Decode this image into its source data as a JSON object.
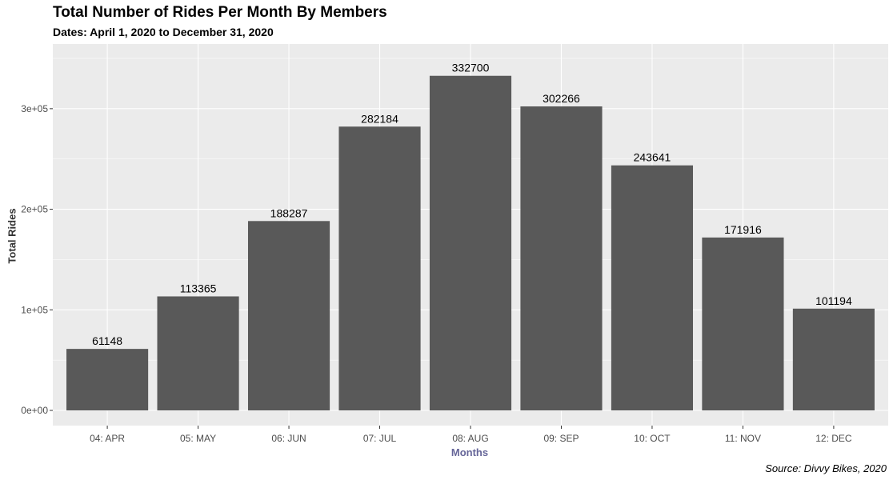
{
  "chart_data": {
    "type": "bar",
    "title": "Total Number of Rides Per Month By Members",
    "subtitle": "Dates: April 1, 2020 to December 31, 2020",
    "xlabel": "Months",
    "ylabel": "Total Rides",
    "caption": "Source: Divvy Bikes, 2020",
    "categories": [
      "04: APR",
      "05: MAY",
      "06: JUN",
      "07: JUL",
      "08: AUG",
      "09: SEP",
      "10: OCT",
      "11: NOV",
      "12: DEC"
    ],
    "values": [
      61148,
      113365,
      188287,
      282184,
      332700,
      302266,
      243641,
      171916,
      101194
    ],
    "data_labels": [
      "61148",
      "113365",
      "188287",
      "282184",
      "332700",
      "302266",
      "243641",
      "171916",
      "101194"
    ],
    "ylim": [
      0,
      350000
    ],
    "yticks": [
      0,
      100000,
      200000,
      300000
    ],
    "ytick_labels": [
      "0e+00",
      "1e+05",
      "2e+05",
      "3e+05"
    ],
    "grid": true,
    "colors": {
      "bar": "#595959",
      "panel_background": "#ebebeb",
      "grid_major": "#ffffff",
      "xlabel": "#666699"
    }
  }
}
